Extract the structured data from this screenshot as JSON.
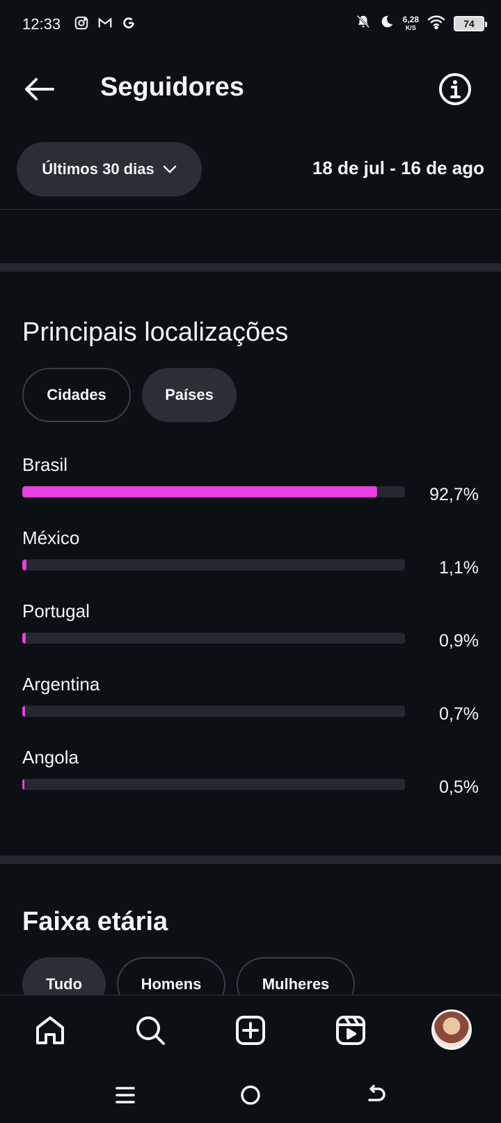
{
  "status_bar": {
    "time": "12:33",
    "left_icons": [
      "instagram-icon",
      "gmail-icon",
      "google-icon"
    ],
    "right_icons": [
      "bell-off-icon",
      "moon-icon",
      "wifi-icon"
    ],
    "network_speed_value": "6,28",
    "network_speed_unit": "K/S",
    "battery": "74"
  },
  "header": {
    "title": "Seguidores"
  },
  "filter": {
    "period_label": "Últimos 30 dias",
    "date_range": "18 de jul - 16 de ago"
  },
  "locations": {
    "title": "Principais localizações",
    "tabs": [
      {
        "label": "Cidades",
        "active": false
      },
      {
        "label": "Países",
        "active": true
      }
    ],
    "items": [
      {
        "name": "Brasil",
        "percent_label": "92,7%",
        "percent": 92.7
      },
      {
        "name": "México",
        "percent_label": "1,1%",
        "percent": 1.1
      },
      {
        "name": "Portugal",
        "percent_label": "0,9%",
        "percent": 0.9
      },
      {
        "name": "Argentina",
        "percent_label": "0,7%",
        "percent": 0.7
      },
      {
        "name": "Angola",
        "percent_label": "0,5%",
        "percent": 0.5
      }
    ],
    "bar_color": "#e83de0"
  },
  "age_range": {
    "title": "Faixa etária",
    "tabs": [
      {
        "label": "Tudo",
        "active": true
      },
      {
        "label": "Homens",
        "active": false
      },
      {
        "label": "Mulheres",
        "active": false
      }
    ]
  },
  "bottom_nav": {
    "items": [
      "home-icon",
      "search-icon",
      "create-icon",
      "reels-icon",
      "profile-avatar"
    ]
  },
  "system_nav": {
    "items": [
      "recents-icon",
      "home-circle-icon",
      "back-icon"
    ]
  }
}
